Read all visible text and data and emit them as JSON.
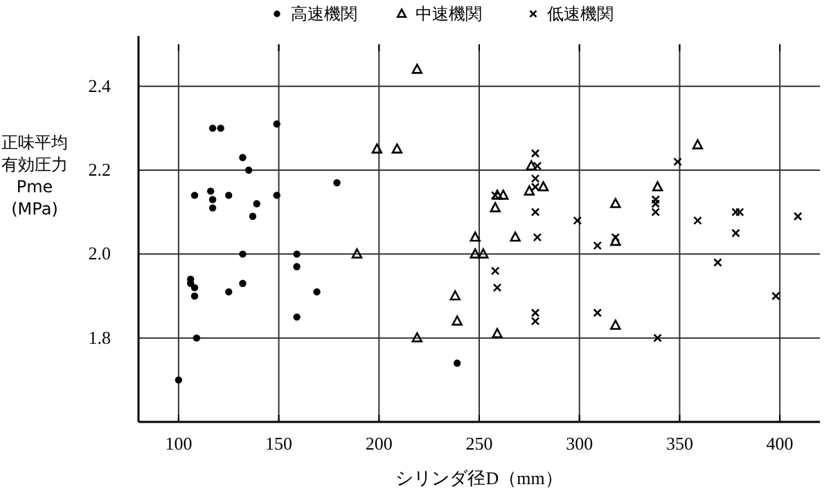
{
  "chart_data": {
    "type": "scatter",
    "xlabel": "シリンダ径D（mm）",
    "ylabel": "正味平均有効圧力 Pme (MPa)",
    "xlim": [
      80,
      420
    ],
    "ylim": [
      1.6,
      2.5
    ],
    "xticks": [
      100,
      150,
      200,
      250,
      300,
      350,
      400
    ],
    "yticks": [
      1.8,
      {
        "value": 2,
        "label": "2.0"
      },
      2.2,
      2.4
    ],
    "grid": true,
    "legend": "top",
    "series": [
      {
        "name": "高速機関",
        "color": "#000000",
        "marker": "circle",
        "x": [
          117,
          121,
          149,
          132,
          135,
          179,
          108,
          116,
          125,
          149,
          117,
          117,
          139,
          137,
          132,
          159,
          159,
          106,
          106,
          108,
          108,
          125,
          132,
          169,
          159,
          109,
          100,
          239
        ],
        "values": [
          2.3,
          2.3,
          2.31,
          2.23,
          2.2,
          2.17,
          2.14,
          2.15,
          2.14,
          2.14,
          2.13,
          2.11,
          2.12,
          2.09,
          2.0,
          2.0,
          1.97,
          1.94,
          1.93,
          1.92,
          1.9,
          1.91,
          1.93,
          1.91,
          1.85,
          1.8,
          1.7,
          1.74
        ]
      },
      {
        "name": "中速機関",
        "color": "#000000",
        "marker": "triangle",
        "x": [
          199,
          189,
          219,
          209,
          276,
          259,
          262,
          258,
          275,
          282,
          248,
          268,
          248,
          252,
          238,
          239,
          219,
          259,
          359,
          339,
          318,
          318,
          318
        ],
        "values": [
          2.25,
          2.0,
          2.44,
          2.25,
          2.21,
          2.14,
          2.14,
          2.11,
          2.15,
          2.16,
          2.04,
          2.04,
          2.0,
          2.0,
          1.9,
          1.84,
          1.8,
          1.81,
          2.26,
          2.16,
          2.12,
          2.03,
          1.83
        ]
      },
      {
        "name": "低速機関",
        "color": "#000000",
        "marker": "cross",
        "x": [
          278,
          279,
          278,
          278,
          258,
          278,
          299,
          279,
          258,
          259,
          278,
          278,
          349,
          338,
          338,
          338,
          318,
          309,
          359,
          378,
          380,
          378,
          409,
          369,
          398,
          309,
          339
        ],
        "values": [
          2.24,
          2.21,
          2.18,
          2.16,
          2.14,
          2.1,
          2.08,
          2.04,
          1.96,
          1.92,
          1.86,
          1.84,
          2.22,
          2.13,
          2.12,
          2.1,
          2.04,
          2.02,
          2.08,
          2.1,
          2.1,
          2.05,
          2.09,
          1.98,
          1.9,
          1.86,
          1.8
        ]
      }
    ]
  }
}
